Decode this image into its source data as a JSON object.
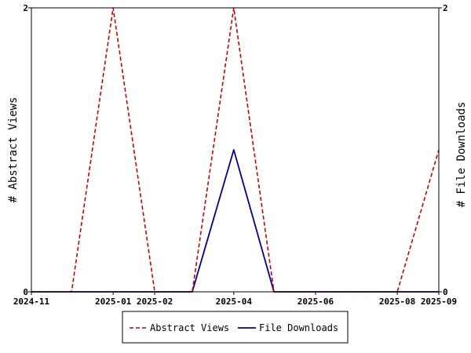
{
  "chart_data": {
    "type": "line",
    "title": "",
    "x_ticks": [
      {
        "date": "2024-11-01",
        "label": "2024-11"
      },
      {
        "date": "2025-01-01",
        "label": "2025-01"
      },
      {
        "date": "2025-02-01",
        "label": "2025-02"
      },
      {
        "date": "2025-04-01",
        "label": "2025-04"
      },
      {
        "date": "2025-06-01",
        "label": "2025-06"
      },
      {
        "date": "2025-08-01",
        "label": "2025-08"
      },
      {
        "date": "2025-09-01",
        "label": "2025-09"
      }
    ],
    "xlim": [
      "2024-11-01",
      "2025-09-01"
    ],
    "y_left": {
      "label": "# Abstract Views",
      "ylim": [
        0,
        2
      ],
      "ticks": [
        "0",
        "2"
      ]
    },
    "y_right": {
      "label": "# File Downloads",
      "ylim": [
        0,
        2
      ],
      "ticks": [
        "0",
        "2"
      ]
    },
    "legend_position": "bottom",
    "series": [
      {
        "name": "Abstract Views",
        "color": "#cc0000",
        "style": "dashed",
        "axis": "left",
        "points": [
          {
            "x": "2024-11-01",
            "y": 0
          },
          {
            "x": "2024-12-01",
            "y": 0
          },
          {
            "x": "2025-01-01",
            "y": 2
          },
          {
            "x": "2025-02-01",
            "y": 0
          },
          {
            "x": "2025-03-01",
            "y": 0
          },
          {
            "x": "2025-04-01",
            "y": 2
          },
          {
            "x": "2025-05-01",
            "y": 0
          },
          {
            "x": "2025-06-01",
            "y": 0
          },
          {
            "x": "2025-07-01",
            "y": 0
          },
          {
            "x": "2025-08-01",
            "y": 0
          },
          {
            "x": "2025-09-01",
            "y": 1
          }
        ]
      },
      {
        "name": "File Downloads",
        "color": "#000099",
        "style": "solid",
        "axis": "right",
        "points": [
          {
            "x": "2024-11-01",
            "y": 0
          },
          {
            "x": "2024-12-01",
            "y": 0
          },
          {
            "x": "2025-01-01",
            "y": 0
          },
          {
            "x": "2025-02-01",
            "y": 0
          },
          {
            "x": "2025-03-01",
            "y": 0
          },
          {
            "x": "2025-04-01",
            "y": 1
          },
          {
            "x": "2025-05-01",
            "y": 0
          },
          {
            "x": "2025-06-01",
            "y": 0
          },
          {
            "x": "2025-07-01",
            "y": 0
          },
          {
            "x": "2025-08-01",
            "y": 0
          },
          {
            "x": "2025-09-01",
            "y": 0
          }
        ]
      }
    ]
  }
}
